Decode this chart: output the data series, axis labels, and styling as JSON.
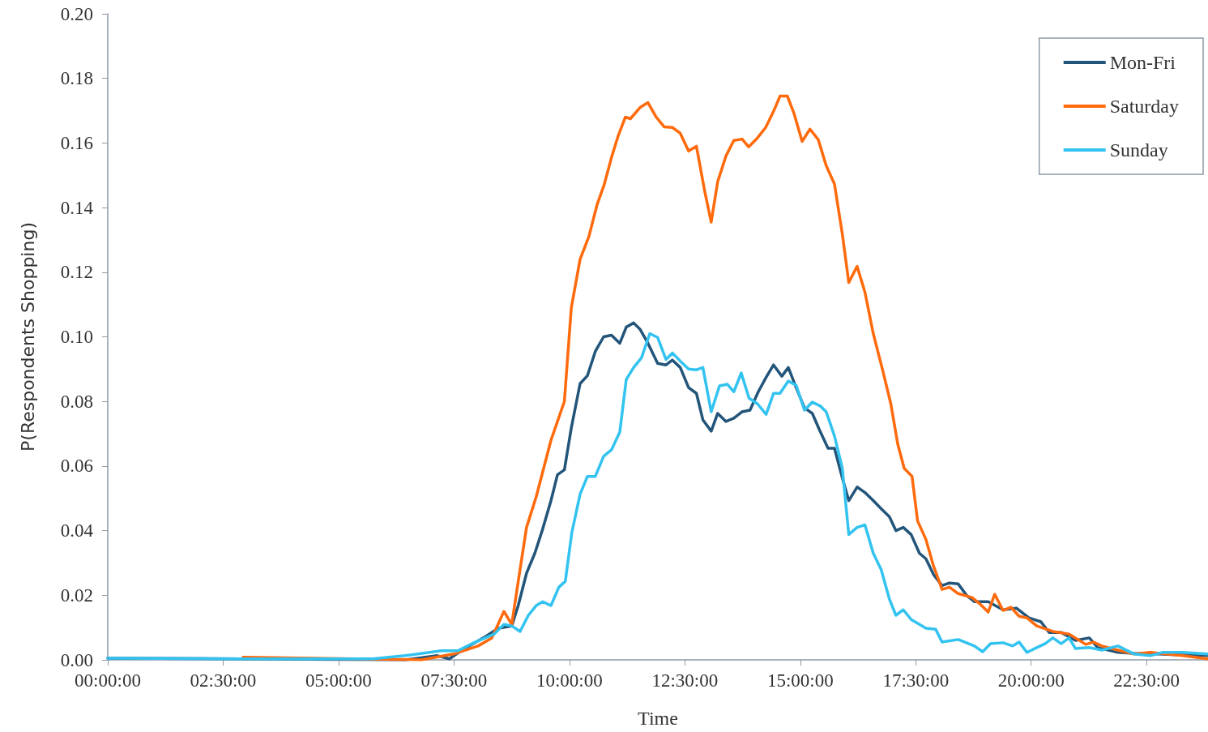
{
  "chart_data": {
    "type": "line",
    "xlabel": "Time",
    "ylabel": "P(Respondents Shopping)",
    "xlim": [
      0,
      23.83
    ],
    "ylim": [
      0,
      0.2
    ],
    "xticks": [
      {
        "value": 0,
        "label": "00:00:00"
      },
      {
        "value": 2.5,
        "label": "02:30:00"
      },
      {
        "value": 5,
        "label": "05:00:00"
      },
      {
        "value": 7.5,
        "label": "07:30:00"
      },
      {
        "value": 10,
        "label": "10:00:00"
      },
      {
        "value": 12.5,
        "label": "12:30:00"
      },
      {
        "value": 15,
        "label": "15:00:00"
      },
      {
        "value": 17.5,
        "label": "17:30:00"
      },
      {
        "value": 20,
        "label": "20:00:00"
      },
      {
        "value": 22.5,
        "label": "22:30:00"
      }
    ],
    "yticks": [
      {
        "value": 0,
        "label": "0.00"
      },
      {
        "value": 0.02,
        "label": "0.02"
      },
      {
        "value": 0.04,
        "label": "0.04"
      },
      {
        "value": 0.06,
        "label": "0.06"
      },
      {
        "value": 0.08,
        "label": "0.08"
      },
      {
        "value": 0.1,
        "label": "0.10"
      },
      {
        "value": 0.12,
        "label": "0.12"
      },
      {
        "value": 0.14,
        "label": "0.14"
      },
      {
        "value": 0.16,
        "label": "0.16"
      },
      {
        "value": 0.18,
        "label": "0.18"
      },
      {
        "value": 0.2,
        "label": "0.20"
      }
    ],
    "grid": false,
    "legend": "top right",
    "marker": "none",
    "line_style": "solid",
    "series": [
      {
        "name": "Mon-Fri",
        "color": "#23557a",
        "x": [
          0,
          2.93,
          6.44,
          7.14,
          7.4,
          7.67,
          8.19,
          8.46,
          8.75,
          8.89,
          9.07,
          9.25,
          9.42,
          9.6,
          9.74,
          9.89,
          10.04,
          10.23,
          10.39,
          10.56,
          10.74,
          10.91,
          11.09,
          11.23,
          11.39,
          11.53,
          11.7,
          11.91,
          12.09,
          12.23,
          12.4,
          12.58,
          12.75,
          12.89,
          13.07,
          13.21,
          13.39,
          13.56,
          13.74,
          13.91,
          14.09,
          14.26,
          14.42,
          14.6,
          14.74,
          14.91,
          15.09,
          15.26,
          15.42,
          15.6,
          15.74,
          15.91,
          16.05,
          16.23,
          16.4,
          16.58,
          16.75,
          16.93,
          17.07,
          17.23,
          17.4,
          17.58,
          17.72,
          17.89,
          18.07,
          18.23,
          18.42,
          18.6,
          18.77,
          19.07,
          19.39,
          19.68,
          19.95,
          20.21,
          20.39,
          20.65,
          20.96,
          21.26,
          21.44,
          21.88,
          22.23,
          22.75,
          23.28,
          23.82
        ],
        "values": [
          0.0005,
          0.0003,
          0,
          0.0013,
          0.0003,
          0.003,
          0.0073,
          0.0098,
          0.0105,
          0.0168,
          0.0268,
          0.033,
          0.0405,
          0.0493,
          0.0573,
          0.0588,
          0.0718,
          0.0855,
          0.088,
          0.0955,
          0.1,
          0.1005,
          0.098,
          0.103,
          0.1043,
          0.1023,
          0.098,
          0.0918,
          0.0913,
          0.0928,
          0.0905,
          0.0843,
          0.0825,
          0.0743,
          0.0708,
          0.0763,
          0.0738,
          0.0748,
          0.0768,
          0.0773,
          0.083,
          0.0875,
          0.0913,
          0.0878,
          0.0905,
          0.0843,
          0.078,
          0.0763,
          0.071,
          0.0655,
          0.0655,
          0.0563,
          0.0493,
          0.0535,
          0.0518,
          0.0493,
          0.0468,
          0.0443,
          0.04,
          0.041,
          0.0388,
          0.033,
          0.0313,
          0.0263,
          0.023,
          0.0238,
          0.0235,
          0.02,
          0.018,
          0.018,
          0.0155,
          0.016,
          0.013,
          0.0118,
          0.0085,
          0.0085,
          0.006,
          0.0068,
          0.0038,
          0.0023,
          0.002,
          0.0018,
          0.0015,
          0.0013
        ]
      },
      {
        "name": "Saturday",
        "color": "#ff6a0d",
        "x": [
          2.93,
          6.79,
          7.49,
          8.02,
          8.32,
          8.58,
          8.75,
          8.93,
          9.07,
          9.28,
          9.6,
          9.89,
          10.04,
          10.23,
          10.42,
          10.6,
          10.75,
          10.91,
          11.05,
          11.21,
          11.32,
          11.53,
          11.7,
          11.88,
          12.05,
          12.23,
          12.4,
          12.58,
          12.75,
          12.93,
          13.07,
          13.21,
          13.39,
          13.56,
          13.74,
          13.88,
          14.05,
          14.25,
          14.42,
          14.56,
          14.72,
          14.86,
          15.04,
          15.21,
          15.39,
          15.56,
          15.74,
          15.91,
          16.05,
          16.23,
          16.4,
          16.58,
          16.79,
          16.96,
          17.11,
          17.25,
          17.42,
          17.54,
          17.72,
          17.88,
          18.07,
          18.23,
          18.42,
          18.72,
          18.89,
          19.07,
          19.21,
          19.39,
          19.56,
          19.74,
          19.91,
          20.12,
          20.47,
          20.82,
          21.18,
          21.35,
          21.53,
          21.88,
          22.23,
          22.58,
          22.93,
          23.28,
          23.82
        ],
        "values": [
          0.0008,
          0,
          0.0018,
          0.0043,
          0.0068,
          0.015,
          0.011,
          0.028,
          0.041,
          0.0505,
          0.068,
          0.08,
          0.109,
          0.124,
          0.131,
          0.141,
          0.147,
          0.1555,
          0.162,
          0.168,
          0.1675,
          0.171,
          0.1725,
          0.168,
          0.165,
          0.1648,
          0.163,
          0.1575,
          0.159,
          0.145,
          0.1355,
          0.148,
          0.156,
          0.1608,
          0.1612,
          0.1588,
          0.1612,
          0.1648,
          0.1698,
          0.1745,
          0.1745,
          0.1693,
          0.1605,
          0.1643,
          0.161,
          0.153,
          0.1473,
          0.1318,
          0.1168,
          0.1218,
          0.1138,
          0.101,
          0.0893,
          0.0793,
          0.0668,
          0.0593,
          0.0568,
          0.043,
          0.0373,
          0.0293,
          0.0218,
          0.0225,
          0.0205,
          0.0193,
          0.0173,
          0.0148,
          0.0203,
          0.0153,
          0.0163,
          0.0135,
          0.013,
          0.0105,
          0.0088,
          0.008,
          0.0048,
          0.0055,
          0.0043,
          0.003,
          0.0018,
          0.0023,
          0.0018,
          0.0013,
          0.0003
        ]
      },
      {
        "name": "Sunday",
        "color": "#33c3f0",
        "x": [
          0,
          2.93,
          5.74,
          6.44,
          7.23,
          7.58,
          7.93,
          8.37,
          8.58,
          8.75,
          8.93,
          9.11,
          9.28,
          9.42,
          9.6,
          9.77,
          9.91,
          10.05,
          10.23,
          10.39,
          10.56,
          10.74,
          10.91,
          11.09,
          11.23,
          11.39,
          11.56,
          11.74,
          11.91,
          12.09,
          12.23,
          12.4,
          12.58,
          12.75,
          12.89,
          13.07,
          13.25,
          13.42,
          13.56,
          13.72,
          13.89,
          14.07,
          14.26,
          14.42,
          14.56,
          14.74,
          14.91,
          15.09,
          15.26,
          15.44,
          15.56,
          15.74,
          15.91,
          16.05,
          16.23,
          16.4,
          16.58,
          16.75,
          16.93,
          17.07,
          17.23,
          17.4,
          17.58,
          17.72,
          17.93,
          18.07,
          18.42,
          18.77,
          18.95,
          19.12,
          19.39,
          19.6,
          19.74,
          19.91,
          20.12,
          20.3,
          20.47,
          20.65,
          20.82,
          20.96,
          21.26,
          21.53,
          21.88,
          22.23,
          22.58,
          22.84,
          23.28,
          23.82
        ],
        "values": [
          0.0005,
          0.0003,
          0.0003,
          0.0013,
          0.0028,
          0.0028,
          0.0053,
          0.008,
          0.011,
          0.0105,
          0.0088,
          0.0138,
          0.0168,
          0.018,
          0.0168,
          0.0225,
          0.0243,
          0.0393,
          0.0513,
          0.0568,
          0.0568,
          0.063,
          0.065,
          0.0705,
          0.0868,
          0.0905,
          0.0935,
          0.101,
          0.0998,
          0.093,
          0.095,
          0.0925,
          0.09,
          0.0898,
          0.0905,
          0.0768,
          0.0848,
          0.0853,
          0.083,
          0.0888,
          0.081,
          0.0793,
          0.076,
          0.0825,
          0.0825,
          0.0863,
          0.085,
          0.0773,
          0.0798,
          0.0785,
          0.0768,
          0.0693,
          0.0593,
          0.0388,
          0.041,
          0.0418,
          0.033,
          0.028,
          0.0188,
          0.0138,
          0.0155,
          0.0125,
          0.011,
          0.0098,
          0.0095,
          0.0055,
          0.0063,
          0.0043,
          0.0025,
          0.005,
          0.0053,
          0.0043,
          0.0055,
          0.0023,
          0.0038,
          0.005,
          0.0068,
          0.005,
          0.0068,
          0.0035,
          0.0038,
          0.003,
          0.0043,
          0.0018,
          0.0013,
          0.0023,
          0.0023,
          0.0018
        ]
      }
    ]
  }
}
